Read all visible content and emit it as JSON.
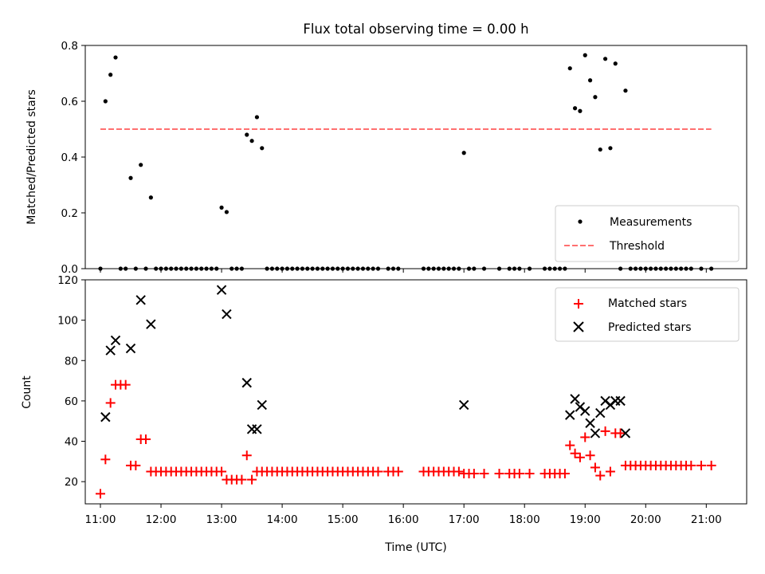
{
  "chart_data": [
    {
      "type": "scatter",
      "title": "Flux total observing time = 0.00 h",
      "ylabel": "Matched/Predicted stars",
      "xlabel": "",
      "xlim": [
        "10:45",
        "21:40"
      ],
      "ylim": [
        0,
        0.8
      ],
      "yticks": [
        "0.0",
        "0.2",
        "0.4",
        "0.6",
        "0.8"
      ],
      "grid": false,
      "legend_position": "bottom-right",
      "series": [
        {
          "name": "Measurements",
          "color": "#000000",
          "marker": "dot",
          "x": [
            "11:00",
            "11:05",
            "11:10",
            "11:15",
            "11:20",
            "11:25",
            "11:30",
            "11:35",
            "11:40",
            "11:45",
            "11:50",
            "11:55",
            "12:00",
            "12:05",
            "12:10",
            "12:15",
            "12:20",
            "12:25",
            "12:30",
            "12:35",
            "12:40",
            "12:45",
            "12:50",
            "12:55",
            "13:00",
            "13:05",
            "13:10",
            "13:15",
            "13:20",
            "13:25",
            "13:30",
            "13:35",
            "13:40",
            "13:45",
            "13:50",
            "13:55",
            "14:00",
            "14:05",
            "14:10",
            "14:15",
            "14:20",
            "14:25",
            "14:30",
            "14:35",
            "14:40",
            "14:45",
            "14:50",
            "14:55",
            "15:00",
            "15:05",
            "15:10",
            "15:15",
            "15:20",
            "15:25",
            "15:30",
            "15:35",
            "15:45",
            "15:50",
            "15:55",
            "16:20",
            "16:25",
            "16:30",
            "16:35",
            "16:40",
            "16:45",
            "16:50",
            "16:55",
            "17:00",
            "17:05",
            "17:10",
            "17:20",
            "17:35",
            "17:45",
            "17:50",
            "17:55",
            "18:05",
            "18:20",
            "18:25",
            "18:30",
            "18:35",
            "18:40",
            "18:45",
            "18:50",
            "18:55",
            "19:00",
            "19:05",
            "19:10",
            "19:15",
            "19:20",
            "19:25",
            "19:30",
            "19:35",
            "19:40",
            "19:45",
            "19:50",
            "19:55",
            "20:00",
            "20:05",
            "20:10",
            "20:15",
            "20:20",
            "20:25",
            "20:30",
            "20:35",
            "20:40",
            "20:45",
            "20:55",
            "21:05"
          ],
          "y": [
            0.0,
            0.6,
            0.695,
            0.757,
            0.0,
            0.0,
            0.325,
            0.0,
            0.372,
            0.0,
            0.255,
            0.0,
            0.0,
            0.0,
            0.0,
            0.0,
            0.0,
            0.0,
            0.0,
            0.0,
            0.0,
            0.0,
            0.0,
            0.0,
            0.219,
            0.203,
            0.0,
            0.0,
            0.0,
            0.48,
            0.458,
            0.543,
            0.432,
            0.0,
            0.0,
            0.0,
            0.0,
            0.0,
            0.0,
            0.0,
            0.0,
            0.0,
            0.0,
            0.0,
            0.0,
            0.0,
            0.0,
            0.0,
            0.0,
            0.0,
            0.0,
            0.0,
            0.0,
            0.0,
            0.0,
            0.0,
            0.0,
            0.0,
            0.0,
            0.0,
            0.0,
            0.0,
            0.0,
            0.0,
            0.0,
            0.0,
            0.0,
            0.415,
            0.0,
            0.0,
            0.0,
            0.0,
            0.0,
            0.0,
            0.0,
            0.0,
            0.0,
            0.0,
            0.0,
            0.0,
            0.0,
            0.718,
            0.575,
            0.565,
            0.765,
            0.675,
            0.615,
            0.427,
            0.752,
            0.432,
            0.735,
            0.0,
            0.638,
            0.0,
            0.0,
            0.0,
            0.0,
            0.0,
            0.0,
            0.0,
            0.0,
            0.0,
            0.0,
            0.0,
            0.0,
            0.0,
            0.0,
            0.0
          ]
        },
        {
          "name": "Threshold",
          "color": "#ff7070",
          "style": "dashed",
          "x": [
            "11:00",
            "21:05"
          ],
          "y": [
            0.5,
            0.5
          ]
        }
      ]
    },
    {
      "type": "scatter",
      "title": "",
      "ylabel": "Count",
      "xlabel": "Time (UTC)",
      "xlim": [
        "10:45",
        "21:40"
      ],
      "ylim": [
        9,
        120
      ],
      "yticks": [
        "20",
        "40",
        "60",
        "80",
        "100",
        "120"
      ],
      "xticks": [
        "11:00",
        "12:00",
        "13:00",
        "14:00",
        "15:00",
        "16:00",
        "17:00",
        "18:00",
        "19:00",
        "20:00",
        "21:00"
      ],
      "grid": false,
      "legend_position": "top-right",
      "series": [
        {
          "name": "Matched stars",
          "color": "#ff0000",
          "marker": "plus",
          "x": [
            "11:00",
            "11:05",
            "11:10",
            "11:15",
            "11:20",
            "11:25",
            "11:30",
            "11:35",
            "11:40",
            "11:45",
            "11:50",
            "11:55",
            "12:00",
            "12:05",
            "12:10",
            "12:15",
            "12:20",
            "12:25",
            "12:30",
            "12:35",
            "12:40",
            "12:45",
            "12:50",
            "12:55",
            "13:00",
            "13:05",
            "13:10",
            "13:15",
            "13:20",
            "13:25",
            "13:30",
            "13:35",
            "13:40",
            "13:45",
            "13:50",
            "13:55",
            "14:00",
            "14:05",
            "14:10",
            "14:15",
            "14:20",
            "14:25",
            "14:30",
            "14:35",
            "14:40",
            "14:45",
            "14:50",
            "14:55",
            "15:00",
            "15:05",
            "15:10",
            "15:15",
            "15:20",
            "15:25",
            "15:30",
            "15:35",
            "15:45",
            "15:50",
            "15:55",
            "16:20",
            "16:25",
            "16:30",
            "16:35",
            "16:40",
            "16:45",
            "16:50",
            "16:55",
            "17:00",
            "17:05",
            "17:10",
            "17:20",
            "17:35",
            "17:45",
            "17:50",
            "17:55",
            "18:05",
            "18:20",
            "18:25",
            "18:30",
            "18:35",
            "18:40",
            "18:45",
            "18:50",
            "18:55",
            "19:00",
            "19:05",
            "19:10",
            "19:15",
            "19:20",
            "19:25",
            "19:30",
            "19:35",
            "19:40",
            "19:45",
            "19:50",
            "19:55",
            "20:00",
            "20:05",
            "20:10",
            "20:15",
            "20:20",
            "20:25",
            "20:30",
            "20:35",
            "20:40",
            "20:45",
            "20:55",
            "21:05"
          ],
          "y": [
            14,
            31,
            59,
            68,
            68,
            68,
            28,
            28,
            41,
            41,
            25,
            25,
            25,
            25,
            25,
            25,
            25,
            25,
            25,
            25,
            25,
            25,
            25,
            25,
            25,
            21,
            21,
            21,
            21,
            33,
            21,
            25,
            25,
            25,
            25,
            25,
            25,
            25,
            25,
            25,
            25,
            25,
            25,
            25,
            25,
            25,
            25,
            25,
            25,
            25,
            25,
            25,
            25,
            25,
            25,
            25,
            25,
            25,
            25,
            25,
            25,
            25,
            25,
            25,
            25,
            25,
            25,
            24,
            24,
            24,
            24,
            24,
            24,
            24,
            24,
            24,
            24,
            24,
            24,
            24,
            24,
            38,
            34,
            32,
            42,
            33,
            27,
            23,
            45,
            25,
            44,
            44,
            28,
            28,
            28,
            28,
            28,
            28,
            28,
            28,
            28,
            28,
            28,
            28,
            28,
            28,
            28,
            28
          ]
        },
        {
          "name": "Predicted stars",
          "color": "#000000",
          "marker": "x",
          "x": [
            "11:05",
            "11:10",
            "11:15",
            "11:30",
            "11:40",
            "11:50",
            "13:00",
            "13:05",
            "13:25",
            "13:30",
            "13:35",
            "13:40",
            "17:00",
            "18:45",
            "18:50",
            "18:55",
            "19:00",
            "19:05",
            "19:10",
            "19:15",
            "19:20",
            "19:25",
            "19:30",
            "19:35",
            "19:40"
          ],
          "y": [
            52,
            85,
            90,
            86,
            110,
            98,
            115,
            103,
            69,
            46,
            46,
            58,
            58,
            53,
            61,
            57,
            55,
            49,
            44,
            54,
            60,
            58,
            60,
            60,
            44
          ]
        }
      ]
    }
  ]
}
